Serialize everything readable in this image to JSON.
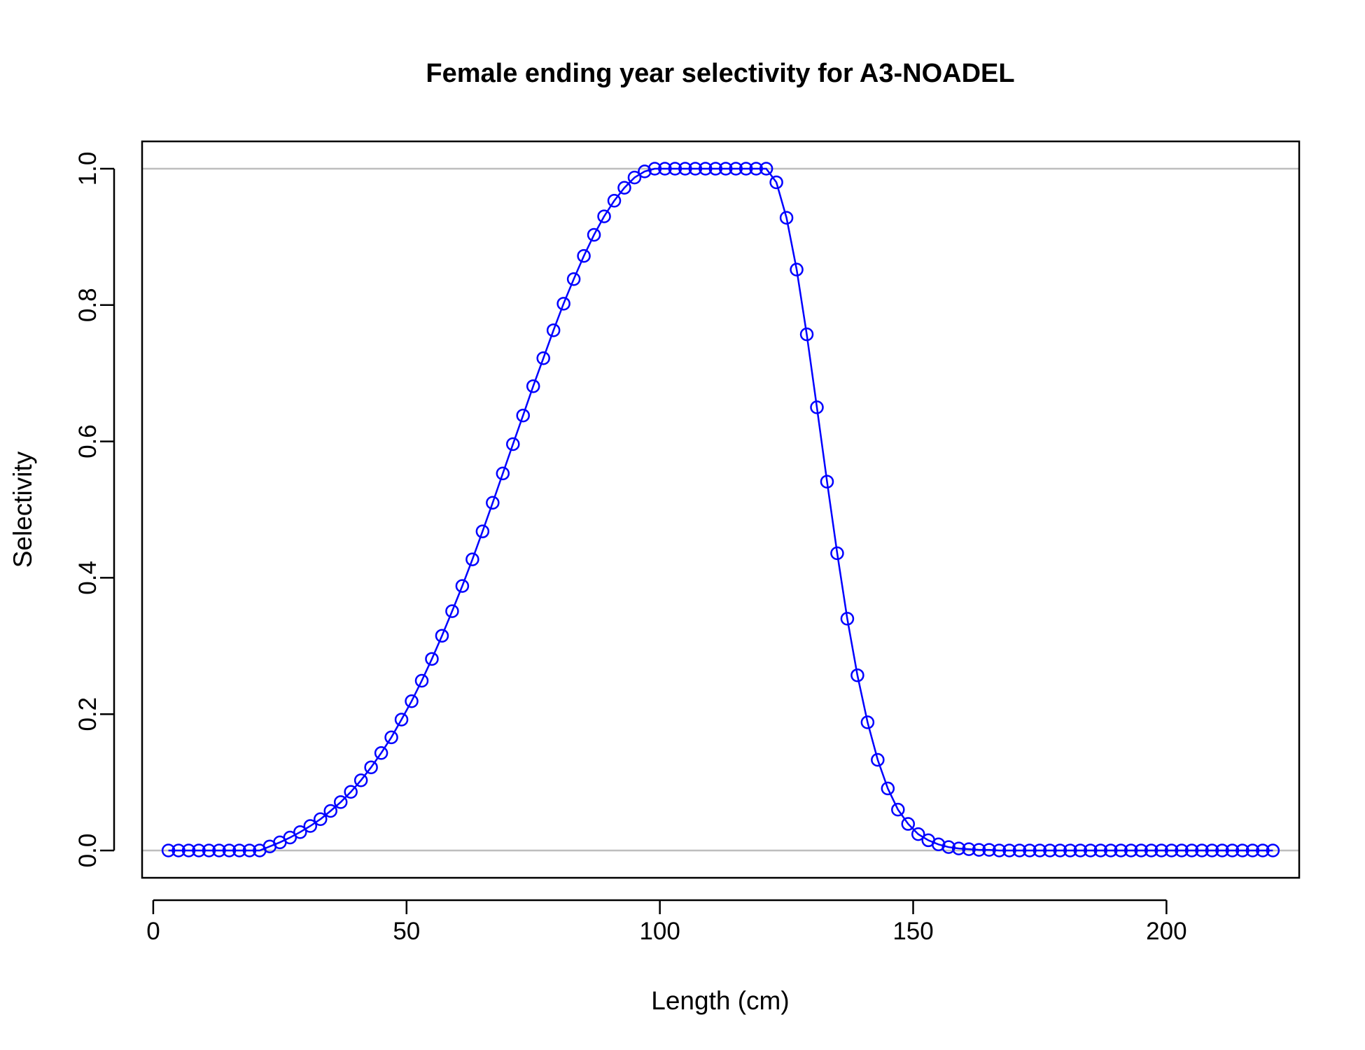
{
  "chart_data": {
    "type": "line",
    "title": "Female ending year selectivity for A3-NOADEL",
    "xlabel": "Length (cm)",
    "ylabel": "Selectivity",
    "xlim": [
      -2.2,
      226.2
    ],
    "ylim": [
      -0.04,
      1.04
    ],
    "xticks": [
      0,
      50,
      100,
      150,
      200
    ],
    "yticks": [
      "0.0",
      "0.2",
      "0.4",
      "0.6",
      "0.8",
      "1.0"
    ],
    "reference_lines": [
      0,
      1
    ],
    "markers": "open-circle",
    "grid": false,
    "series": [
      {
        "color": "#0000ff",
        "x": [
          3,
          5,
          7,
          9,
          11,
          13,
          15,
          17,
          19,
          21,
          23,
          25,
          27,
          29,
          31,
          33,
          35,
          37,
          39,
          41,
          43,
          45,
          47,
          49,
          51,
          53,
          55,
          57,
          59,
          61,
          63,
          65,
          67,
          69,
          71,
          73,
          75,
          77,
          79,
          81,
          83,
          85,
          87,
          89,
          91,
          93,
          95,
          97,
          99,
          101,
          103,
          105,
          107,
          109,
          111,
          113,
          115,
          117,
          119,
          121,
          123,
          125,
          127,
          129,
          131,
          133,
          135,
          137,
          139,
          141,
          143,
          145,
          147,
          149,
          151,
          153,
          155,
          157,
          159,
          161,
          163,
          165,
          167,
          169,
          171,
          173,
          175,
          177,
          179,
          181,
          183,
          185,
          187,
          189,
          191,
          193,
          195,
          197,
          199,
          201,
          203,
          205,
          207,
          209,
          211,
          213,
          215,
          217,
          219,
          221
        ],
        "y": [
          0,
          0,
          0,
          0,
          0,
          0,
          0,
          0,
          0,
          0,
          0.006,
          0.012,
          0.019,
          0.027,
          0.036,
          0.046,
          0.058,
          0.071,
          0.086,
          0.103,
          0.122,
          0.143,
          0.166,
          0.192,
          0.219,
          0.249,
          0.281,
          0.315,
          0.351,
          0.388,
          0.427,
          0.468,
          0.51,
          0.553,
          0.596,
          0.638,
          0.681,
          0.722,
          0.763,
          0.802,
          0.838,
          0.872,
          0.903,
          0.93,
          0.953,
          0.972,
          0.987,
          0.996,
          1,
          1,
          1,
          1,
          1,
          1,
          1,
          1,
          1,
          1,
          1,
          1,
          0.98,
          0.928,
          0.852,
          0.757,
          0.65,
          0.541,
          0.436,
          0.34,
          0.257,
          0.188,
          0.133,
          0.091,
          0.06,
          0.039,
          0.024,
          0.015,
          0.009,
          0.005,
          0.003,
          0.002,
          0.001,
          0.001,
          0,
          0,
          0,
          0,
          0,
          0,
          0,
          0,
          0,
          0,
          0,
          0,
          0,
          0,
          0,
          0,
          0,
          0,
          0,
          0,
          0,
          0,
          0,
          0,
          0,
          0,
          0,
          0
        ]
      }
    ]
  }
}
